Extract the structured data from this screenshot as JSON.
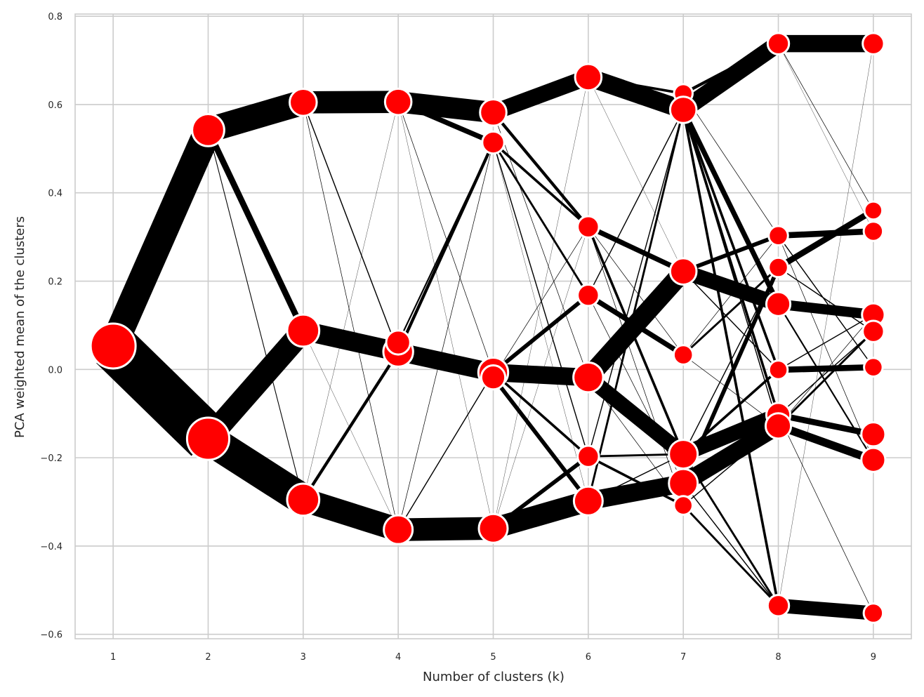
{
  "chart_data": {
    "type": "scatter",
    "subtype": "cluster-tree",
    "title": "",
    "xlabel": "Number of clusters (k)",
    "ylabel": "PCA weighted mean of the clusters",
    "xlim": [
      0.6,
      9.4
    ],
    "ylim": [
      -0.61,
      0.805
    ],
    "x_ticks": [
      1,
      2,
      3,
      4,
      5,
      6,
      7,
      8,
      9
    ],
    "x_tick_labels": [
      "1",
      "2",
      "3",
      "4",
      "5",
      "6",
      "7",
      "8",
      "9"
    ],
    "y_ticks": [
      -0.6,
      -0.4,
      -0.2,
      0.0,
      0.2,
      0.4,
      0.6,
      0.8
    ],
    "y_tick_labels": [
      "−0.6",
      "−0.4",
      "−0.2",
      "0.0",
      "0.2",
      "0.4",
      "0.6",
      "0.8"
    ],
    "grid": true,
    "colors": {
      "node": "#ff0000",
      "node_edge": "#ffffff",
      "edge": "#000000",
      "grid": "#cccccc",
      "background": "#ffffff"
    },
    "nodes": [
      [
        {
          "y": 0.053,
          "size": 1.0
        }
      ],
      [
        {
          "y": 0.542,
          "size": 0.62
        },
        {
          "y": -0.157,
          "size": 0.92
        }
      ],
      [
        {
          "y": 0.605,
          "size": 0.47
        },
        {
          "y": 0.088,
          "size": 0.62
        },
        {
          "y": -0.295,
          "size": 0.62
        }
      ],
      [
        {
          "y": 0.606,
          "size": 0.45
        },
        {
          "y": 0.04,
          "size": 0.55
        },
        {
          "y": 0.061,
          "size": 0.38
        },
        {
          "y": -0.363,
          "size": 0.52
        }
      ],
      [
        {
          "y": 0.582,
          "size": 0.45
        },
        {
          "y": 0.514,
          "size": 0.32
        },
        {
          "y": -0.007,
          "size": 0.55
        },
        {
          "y": -0.018,
          "size": 0.38
        },
        {
          "y": -0.36,
          "size": 0.52
        }
      ],
      [
        {
          "y": 0.662,
          "size": 0.45
        },
        {
          "y": 0.323,
          "size": 0.3
        },
        {
          "y": 0.168,
          "size": 0.3
        },
        {
          "y": -0.018,
          "size": 0.55
        },
        {
          "y": -0.197,
          "size": 0.3
        },
        {
          "y": -0.298,
          "size": 0.52
        }
      ],
      [
        {
          "y": 0.625,
          "size": 0.22
        },
        {
          "y": 0.588,
          "size": 0.45
        },
        {
          "y": 0.222,
          "size": 0.45
        },
        {
          "y": 0.033,
          "size": 0.24
        },
        {
          "y": -0.192,
          "size": 0.52
        },
        {
          "y": -0.258,
          "size": 0.52
        },
        {
          "y": -0.308,
          "size": 0.22
        }
      ],
      [
        {
          "y": 0.738,
          "size": 0.3
        },
        {
          "y": 0.303,
          "size": 0.24
        },
        {
          "y": 0.231,
          "size": 0.24
        },
        {
          "y": 0.148,
          "size": 0.38
        },
        {
          "y": -0.001,
          "size": 0.22
        },
        {
          "y": -0.103,
          "size": 0.38
        },
        {
          "y": -0.128,
          "size": 0.42
        },
        {
          "y": -0.535,
          "size": 0.3
        }
      ],
      [
        {
          "y": 0.738,
          "size": 0.3
        },
        {
          "y": 0.36,
          "size": 0.2
        },
        {
          "y": 0.313,
          "size": 0.24
        },
        {
          "y": 0.124,
          "size": 0.34
        },
        {
          "y": 0.086,
          "size": 0.3
        },
        {
          "y": 0.005,
          "size": 0.22
        },
        {
          "y": -0.147,
          "size": 0.38
        },
        {
          "y": -0.205,
          "size": 0.38
        },
        {
          "y": -0.552,
          "size": 0.24
        }
      ]
    ],
    "edges": [
      [
        0,
        0,
        0,
        0.55
      ],
      [
        0,
        0,
        1,
        0.95
      ],
      [
        1,
        0,
        0,
        0.5
      ],
      [
        1,
        0,
        1,
        0.12
      ],
      [
        1,
        0,
        2,
        0.015
      ],
      [
        1,
        1,
        1,
        0.45
      ],
      [
        1,
        1,
        2,
        0.62
      ],
      [
        2,
        0,
        0,
        0.44
      ],
      [
        2,
        0,
        1,
        0.02
      ],
      [
        2,
        0,
        3,
        0.01
      ],
      [
        2,
        1,
        1,
        0.38
      ],
      [
        2,
        1,
        2,
        0.05
      ],
      [
        2,
        1,
        3,
        0.005
      ],
      [
        2,
        2,
        1,
        0.06
      ],
      [
        2,
        2,
        3,
        0.47
      ],
      [
        2,
        2,
        0,
        0.005
      ],
      [
        3,
        0,
        0,
        0.42
      ],
      [
        3,
        0,
        1,
        0.1
      ],
      [
        3,
        0,
        2,
        0.01
      ],
      [
        3,
        0,
        4,
        0.005
      ],
      [
        3,
        1,
        2,
        0.36
      ],
      [
        3,
        1,
        3,
        0.02
      ],
      [
        3,
        1,
        1,
        0.06
      ],
      [
        3,
        2,
        2,
        0.05
      ],
      [
        3,
        2,
        1,
        0.03
      ],
      [
        3,
        3,
        4,
        0.45
      ],
      [
        3,
        3,
        2,
        0.02
      ],
      [
        3,
        3,
        1,
        0.01
      ],
      [
        4,
        0,
        0,
        0.32
      ],
      [
        4,
        0,
        1,
        0.06
      ],
      [
        4,
        0,
        3,
        0.01
      ],
      [
        4,
        1,
        1,
        0.05
      ],
      [
        4,
        1,
        2,
        0.04
      ],
      [
        4,
        1,
        4,
        0.02
      ],
      [
        4,
        1,
        5,
        0.005
      ],
      [
        4,
        2,
        3,
        0.35
      ],
      [
        4,
        2,
        2,
        0.08
      ],
      [
        4,
        2,
        4,
        0.05
      ],
      [
        4,
        3,
        3,
        0.04
      ],
      [
        4,
        3,
        5,
        0.08
      ],
      [
        4,
        3,
        1,
        0.01
      ],
      [
        4,
        4,
        5,
        0.42
      ],
      [
        4,
        4,
        4,
        0.08
      ],
      [
        4,
        4,
        0,
        0.005
      ],
      [
        4,
        4,
        1,
        0.005
      ],
      [
        5,
        0,
        1,
        0.36
      ],
      [
        5,
        0,
        0,
        0.05
      ],
      [
        5,
        0,
        2,
        0.005
      ],
      [
        5,
        1,
        2,
        0.1
      ],
      [
        5,
        1,
        4,
        0.05
      ],
      [
        5,
        1,
        3,
        0.01
      ],
      [
        5,
        1,
        6,
        0.01
      ],
      [
        5,
        2,
        3,
        0.1
      ],
      [
        5,
        2,
        1,
        0.02
      ],
      [
        5,
        2,
        5,
        0.01
      ],
      [
        5,
        3,
        2,
        0.38
      ],
      [
        5,
        3,
        4,
        0.3
      ],
      [
        5,
        3,
        6,
        0.01
      ],
      [
        5,
        4,
        4,
        0.04
      ],
      [
        5,
        4,
        6,
        0.05
      ],
      [
        5,
        4,
        1,
        0.02
      ],
      [
        5,
        5,
        5,
        0.36
      ],
      [
        5,
        5,
        1,
        0.04
      ],
      [
        5,
        5,
        4,
        0.02
      ],
      [
        6,
        0,
        0,
        0.06
      ],
      [
        6,
        0,
        1,
        0.01
      ],
      [
        6,
        1,
        0,
        0.34
      ],
      [
        6,
        1,
        3,
        0.1
      ],
      [
        6,
        1,
        4,
        0.05
      ],
      [
        6,
        1,
        5,
        0.05
      ],
      [
        6,
        1,
        7,
        0.05
      ],
      [
        6,
        1,
        6,
        0.02
      ],
      [
        6,
        2,
        3,
        0.3
      ],
      [
        6,
        2,
        1,
        0.08
      ],
      [
        6,
        2,
        4,
        0.02
      ],
      [
        6,
        3,
        2,
        0.04
      ],
      [
        6,
        3,
        1,
        0.01
      ],
      [
        6,
        3,
        6,
        0.01
      ],
      [
        6,
        4,
        5,
        0.3
      ],
      [
        6,
        4,
        4,
        0.05
      ],
      [
        6,
        4,
        2,
        0.02
      ],
      [
        6,
        4,
        7,
        0.04
      ],
      [
        6,
        5,
        6,
        0.34
      ],
      [
        6,
        5,
        2,
        0.08
      ],
      [
        6,
        5,
        7,
        0.02
      ],
      [
        6,
        6,
        7,
        0.04
      ],
      [
        6,
        6,
        6,
        0.02
      ],
      [
        7,
        0,
        0,
        0.34
      ],
      [
        7,
        0,
        1,
        0.01
      ],
      [
        7,
        0,
        2,
        0.005
      ],
      [
        7,
        1,
        2,
        0.12
      ],
      [
        7,
        1,
        5,
        0.02
      ],
      [
        7,
        1,
        7,
        0.01
      ],
      [
        7,
        2,
        1,
        0.12
      ],
      [
        7,
        2,
        4,
        0.02
      ],
      [
        7,
        3,
        3,
        0.2
      ],
      [
        7,
        3,
        7,
        0.03
      ],
      [
        7,
        4,
        5,
        0.12
      ],
      [
        7,
        4,
        3,
        0.02
      ],
      [
        7,
        5,
        6,
        0.12
      ],
      [
        7,
        5,
        4,
        0.02
      ],
      [
        7,
        5,
        8,
        0.01
      ],
      [
        7,
        6,
        7,
        0.16
      ],
      [
        7,
        6,
        4,
        0.04
      ],
      [
        7,
        6,
        3,
        0.01
      ],
      [
        7,
        7,
        8,
        0.28
      ],
      [
        7,
        7,
        0,
        0.005
      ]
    ]
  }
}
